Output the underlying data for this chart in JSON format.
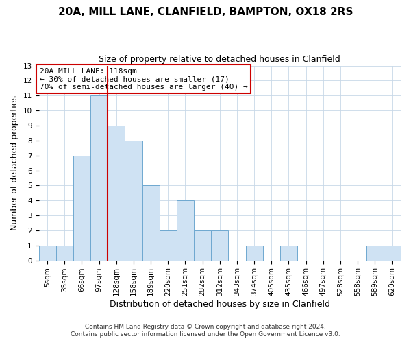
{
  "title": "20A, MILL LANE, CLANFIELD, BAMPTON, OX18 2RS",
  "subtitle": "Size of property relative to detached houses in Clanfield",
  "xlabel": "Distribution of detached houses by size in Clanfield",
  "ylabel": "Number of detached properties",
  "footnote1": "Contains HM Land Registry data © Crown copyright and database right 2024.",
  "footnote2": "Contains public sector information licensed under the Open Government Licence v3.0.",
  "bin_labels": [
    "5sqm",
    "35sqm",
    "66sqm",
    "97sqm",
    "128sqm",
    "158sqm",
    "189sqm",
    "220sqm",
    "251sqm",
    "282sqm",
    "312sqm",
    "343sqm",
    "374sqm",
    "405sqm",
    "435sqm",
    "466sqm",
    "497sqm",
    "528sqm",
    "558sqm",
    "589sqm",
    "620sqm"
  ],
  "bar_heights": [
    1,
    1,
    7,
    11,
    9,
    8,
    5,
    2,
    4,
    2,
    2,
    0,
    1,
    0,
    1,
    0,
    0,
    0,
    0,
    1,
    1
  ],
  "bar_color": "#cfe2f3",
  "bar_edge_color": "#6fa8d0",
  "red_line_x": 3.5,
  "annotation_title": "20A MILL LANE: 118sqm",
  "annotation_line1": "← 30% of detached houses are smaller (17)",
  "annotation_line2": "70% of semi-detached houses are larger (40) →",
  "annotation_box_color": "#ffffff",
  "annotation_box_edge_color": "#cc0000",
  "red_line_color": "#cc0000",
  "ylim": [
    0,
    13
  ],
  "yticks": [
    0,
    1,
    2,
    3,
    4,
    5,
    6,
    7,
    8,
    9,
    10,
    11,
    12,
    13
  ],
  "grid_color": "#c8d8e8",
  "background_color": "#ffffff",
  "title_fontsize": 11,
  "subtitle_fontsize": 9,
  "axis_label_fontsize": 9,
  "tick_fontsize": 7.5,
  "annotation_fontsize": 8,
  "footnote_fontsize": 6.5
}
